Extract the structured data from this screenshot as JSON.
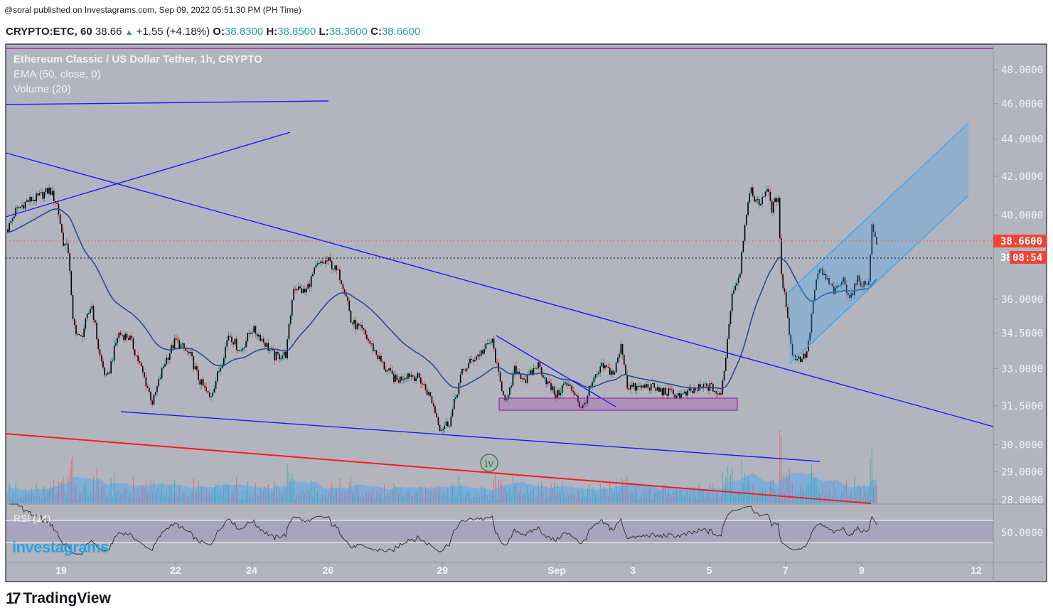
{
  "published": "@soral published on Investagrams.com, Sep 09, 2022 05:51:30 PM (PH Time)",
  "header": {
    "symbol": "CRYPTO:ETC, 60",
    "last": "38.66",
    "change": "+1.55 (+4.18%)",
    "o_label": "O:",
    "o": "38.8300",
    "h_label": "H:",
    "h": "38.8500",
    "l_label": "L:",
    "l": "38.3600",
    "c_label": "C:",
    "c": "38.6600"
  },
  "legend": {
    "title": "Ethereum Classic / US Dollar Tether, 1h, CRYPTO",
    "ema": "EMA (50, close, 0)",
    "volume": "Volume (20)",
    "rsi": "RSI (14)"
  },
  "price_label": "38.6600",
  "countdown_prefix": "38",
  "countdown": "08:54",
  "wave_label": "iv",
  "watermark": "investagrams",
  "brand": "TradingView",
  "colors": {
    "up": "#26a69a",
    "down": "#ef5350",
    "bg": "#b2b5be",
    "trend": "#1a1aff",
    "ema": "#2a4a9a",
    "channel": "#42a5f5",
    "zone": "#9c27b0",
    "support_red": "#ff1a1a"
  },
  "chart_data": {
    "type": "candlestick",
    "title": "Ethereum Classic / US Dollar Tether, 1h, CRYPTO",
    "x_unit": "day (Aug = 1-31, Sep = 32+)",
    "y_scale": "log",
    "ylim": [
      27.9,
      49.5
    ],
    "y_ticks": [
      "48.0000",
      "46.0000",
      "44.0000",
      "42.0000",
      "40.0000",
      "36.0000",
      "34.5000",
      "33.0000",
      "31.5000",
      "30.0000",
      "29.0000",
      "28.0000"
    ],
    "y_tick_values": [
      48,
      46,
      44,
      42,
      40,
      36,
      34.5,
      33,
      31.5,
      30,
      29,
      28
    ],
    "x_ticks": [
      {
        "label": "19",
        "day": 19
      },
      {
        "label": "22",
        "day": 22
      },
      {
        "label": "24",
        "day": 24
      },
      {
        "label": "26",
        "day": 26
      },
      {
        "label": "29",
        "day": 29
      },
      {
        "label": "Sep",
        "day": 32
      },
      {
        "label": "3",
        "day": 34
      },
      {
        "label": "5",
        "day": 36
      },
      {
        "label": "7",
        "day": 38
      },
      {
        "label": "9",
        "day": 40
      },
      {
        "label": "12",
        "day": 43
      }
    ],
    "xlim": [
      17.58,
      43.6
    ],
    "rsi_ticks": [
      "50.0000"
    ],
    "series": [
      {
        "name": "ETC/USDT close (approx path)",
        "points": [
          [
            17.6,
            39.3
          ],
          [
            17.8,
            40.2
          ],
          [
            18.1,
            40.7
          ],
          [
            18.4,
            40.9
          ],
          [
            18.7,
            41.3
          ],
          [
            18.9,
            40.5
          ],
          [
            19.05,
            38.7
          ],
          [
            19.2,
            38.2
          ],
          [
            19.3,
            35.0
          ],
          [
            19.5,
            34.2
          ],
          [
            19.8,
            35.8
          ],
          [
            20.0,
            33.6
          ],
          [
            20.2,
            32.5
          ],
          [
            20.5,
            34.5
          ],
          [
            20.8,
            34.3
          ],
          [
            21.1,
            33.0
          ],
          [
            21.4,
            31.6
          ],
          [
            21.7,
            33.2
          ],
          [
            22.0,
            34.2
          ],
          [
            22.4,
            33.5
          ],
          [
            22.6,
            32.6
          ],
          [
            22.9,
            31.8
          ],
          [
            23.2,
            33.2
          ],
          [
            23.4,
            34.5
          ],
          [
            23.7,
            33.7
          ],
          [
            24.0,
            34.7
          ],
          [
            24.2,
            34.4
          ],
          [
            24.6,
            33.5
          ],
          [
            24.9,
            33.6
          ],
          [
            25.1,
            36.6
          ],
          [
            25.4,
            36.3
          ],
          [
            25.7,
            37.5
          ],
          [
            26.0,
            37.8
          ],
          [
            26.3,
            37.1
          ],
          [
            26.5,
            36.1
          ],
          [
            26.6,
            35.0
          ],
          [
            26.9,
            34.6
          ],
          [
            27.2,
            33.8
          ],
          [
            27.5,
            33.0
          ],
          [
            27.8,
            32.5
          ],
          [
            28.1,
            32.8
          ],
          [
            28.4,
            32.6
          ],
          [
            28.7,
            31.8
          ],
          [
            28.95,
            30.6
          ],
          [
            29.2,
            30.9
          ],
          [
            29.5,
            32.8
          ],
          [
            29.8,
            33.4
          ],
          [
            30.1,
            33.8
          ],
          [
            30.3,
            34.2
          ],
          [
            30.5,
            32.5
          ],
          [
            30.7,
            31.6
          ],
          [
            30.9,
            33.0
          ],
          [
            31.2,
            32.5
          ],
          [
            31.5,
            33.2
          ],
          [
            31.8,
            32.3
          ],
          [
            32.0,
            31.9
          ],
          [
            32.2,
            32.4
          ],
          [
            32.5,
            32.0
          ],
          [
            32.65,
            31.3
          ],
          [
            32.9,
            32.3
          ],
          [
            33.2,
            33.1
          ],
          [
            33.5,
            32.8
          ],
          [
            33.7,
            34.0
          ],
          [
            33.85,
            32.3
          ],
          [
            34.1,
            32.2
          ],
          [
            34.4,
            32.3
          ],
          [
            34.7,
            32.1
          ],
          [
            35.0,
            32.0
          ],
          [
            35.3,
            31.9
          ],
          [
            35.6,
            32.1
          ],
          [
            35.9,
            32.3
          ],
          [
            36.1,
            32.2
          ],
          [
            36.3,
            31.8
          ],
          [
            36.45,
            33.8
          ],
          [
            36.6,
            36.3
          ],
          [
            36.8,
            37.2
          ],
          [
            36.95,
            40.0
          ],
          [
            37.1,
            41.2
          ],
          [
            37.3,
            40.5
          ],
          [
            37.5,
            41.4
          ],
          [
            37.65,
            40.3
          ],
          [
            37.8,
            41.0
          ],
          [
            37.9,
            37.0
          ],
          [
            38.0,
            36.0
          ],
          [
            38.15,
            33.8
          ],
          [
            38.3,
            33.4
          ],
          [
            38.5,
            33.5
          ],
          [
            38.6,
            34.0
          ],
          [
            38.75,
            36.3
          ],
          [
            38.9,
            37.4
          ],
          [
            39.1,
            36.8
          ],
          [
            39.3,
            36.3
          ],
          [
            39.5,
            36.9
          ],
          [
            39.7,
            36.1
          ],
          [
            39.9,
            36.9
          ],
          [
            40.1,
            36.6
          ],
          [
            40.2,
            37.0
          ],
          [
            40.25,
            39.5
          ],
          [
            40.3,
            39.2
          ],
          [
            40.4,
            38.66
          ]
        ]
      }
    ]
  }
}
